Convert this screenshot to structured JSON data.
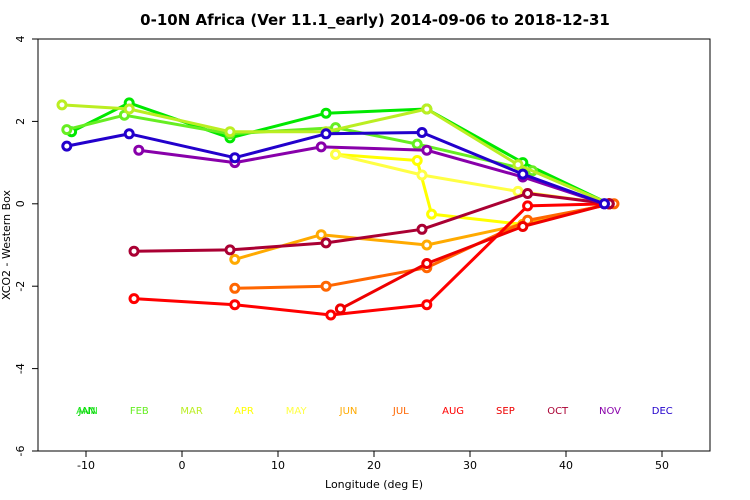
{
  "chart_data": {
    "type": "line",
    "title": "0-10N Africa (Ver 11.1_early)   2014-09-06 to 2018-12-31",
    "xlabel": "Longitude (deg E)",
    "ylabel": "XCO2 - Western Box",
    "xlim": [
      -15,
      55
    ],
    "ylim": [
      -6,
      4
    ],
    "xticks": [
      -10,
      0,
      10,
      20,
      30,
      40,
      50
    ],
    "yticks": [
      -6,
      -4,
      -2,
      0,
      2,
      4
    ],
    "grid": false,
    "legend_position": "bottom",
    "series": [
      {
        "name": "ANN",
        "color": "#00e800",
        "points": [
          [
            -11.5,
            1.75
          ],
          [
            -5.5,
            2.45
          ],
          [
            5.0,
            1.6
          ],
          [
            15.0,
            2.2
          ],
          [
            25.5,
            2.3
          ],
          [
            35.5,
            1.0
          ],
          [
            44.5,
            0.0
          ]
        ]
      },
      {
        "name": "FEB",
        "color": "#66ee22",
        "points": [
          [
            -12.0,
            1.8
          ],
          [
            -6.0,
            2.15
          ],
          [
            5.0,
            1.7
          ],
          [
            16.0,
            1.85
          ],
          [
            24.5,
            1.45
          ],
          [
            36.5,
            0.8
          ],
          [
            44.5,
            0.0
          ]
        ]
      },
      {
        "name": "MAR",
        "color": "#bbee22",
        "points": [
          [
            -12.5,
            2.4
          ],
          [
            -5.5,
            2.3
          ],
          [
            5.0,
            1.75
          ],
          [
            15.0,
            1.75
          ],
          [
            25.5,
            2.3
          ],
          [
            35.0,
            0.95
          ],
          [
            44.5,
            0.0
          ]
        ]
      },
      {
        "name": "APR",
        "color": "#ffff00",
        "points": [
          [
            16.0,
            1.2
          ],
          [
            24.5,
            1.05
          ],
          [
            26.0,
            -0.25
          ],
          [
            35.5,
            -0.5
          ],
          [
            44.5,
            0.0
          ]
        ]
      },
      {
        "name": "MAY",
        "color": "#ffff44",
        "points": [
          [
            16.0,
            1.2
          ],
          [
            25.0,
            0.7
          ],
          [
            35.0,
            0.3
          ],
          [
            44.5,
            0.0
          ]
        ]
      },
      {
        "name": "JUN",
        "color": "#ffaa00",
        "points": [
          [
            5.5,
            -1.35
          ],
          [
            14.5,
            -0.75
          ],
          [
            25.5,
            -1.0
          ],
          [
            35.5,
            -0.5
          ],
          [
            44.5,
            0.0
          ]
        ]
      },
      {
        "name": "JUL",
        "color": "#ff6600",
        "points": [
          [
            5.5,
            -2.05
          ],
          [
            15.0,
            -2.0
          ],
          [
            25.5,
            -1.55
          ],
          [
            36.0,
            -0.4
          ],
          [
            45.0,
            0.0
          ]
        ]
      },
      {
        "name": "AUG",
        "color": "#ff0000",
        "points": [
          [
            -5.0,
            -2.3
          ],
          [
            5.5,
            -2.45
          ],
          [
            15.5,
            -2.7
          ],
          [
            25.5,
            -2.45
          ],
          [
            36.0,
            -0.05
          ],
          [
            44.5,
            0.0
          ]
        ]
      },
      {
        "name": "SEP",
        "color": "#ee0000",
        "points": [
          [
            16.5,
            -2.55
          ],
          [
            25.5,
            -1.45
          ],
          [
            35.5,
            -0.55
          ],
          [
            44.5,
            0.0
          ]
        ]
      },
      {
        "name": "OCT",
        "color": "#aa0033",
        "points": [
          [
            -5.0,
            -1.15
          ],
          [
            5.0,
            -1.12
          ],
          [
            15.0,
            -0.95
          ],
          [
            25.0,
            -0.62
          ],
          [
            36.0,
            0.25
          ],
          [
            44.5,
            0.0
          ]
        ]
      },
      {
        "name": "NOV",
        "color": "#8800aa",
        "points": [
          [
            -4.5,
            1.3
          ],
          [
            5.5,
            1.0
          ],
          [
            14.5,
            1.38
          ],
          [
            25.5,
            1.3
          ],
          [
            35.5,
            0.65
          ],
          [
            44.0,
            0.0
          ]
        ]
      },
      {
        "name": "DEC",
        "color": "#2200cc",
        "points": [
          [
            -12.0,
            1.4
          ],
          [
            -5.5,
            1.7
          ],
          [
            5.5,
            1.12
          ],
          [
            15.0,
            1.7
          ],
          [
            25.0,
            1.73
          ],
          [
            35.5,
            0.72
          ],
          [
            44.0,
            0.0
          ]
        ]
      }
    ],
    "month_labels": [
      {
        "text": "JAN",
        "color": "#00cc00"
      },
      {
        "text": "FEB",
        "color": "#66ee22"
      },
      {
        "text": "MAR",
        "color": "#bbee22"
      },
      {
        "text": "APR",
        "color": "#ffff00"
      },
      {
        "text": "MAY",
        "color": "#ffff44"
      },
      {
        "text": "JUN",
        "color": "#ffaa00"
      },
      {
        "text": "JUL",
        "color": "#ff6600"
      },
      {
        "text": "AUG",
        "color": "#ff0000"
      },
      {
        "text": "SEP",
        "color": "#ee0000"
      },
      {
        "text": "OCT",
        "color": "#aa0033"
      },
      {
        "text": "NOV",
        "color": "#8800aa"
      },
      {
        "text": "DEC",
        "color": "#2200cc"
      }
    ],
    "extra_label": {
      "text": "ANN",
      "color": "#00e800"
    }
  }
}
